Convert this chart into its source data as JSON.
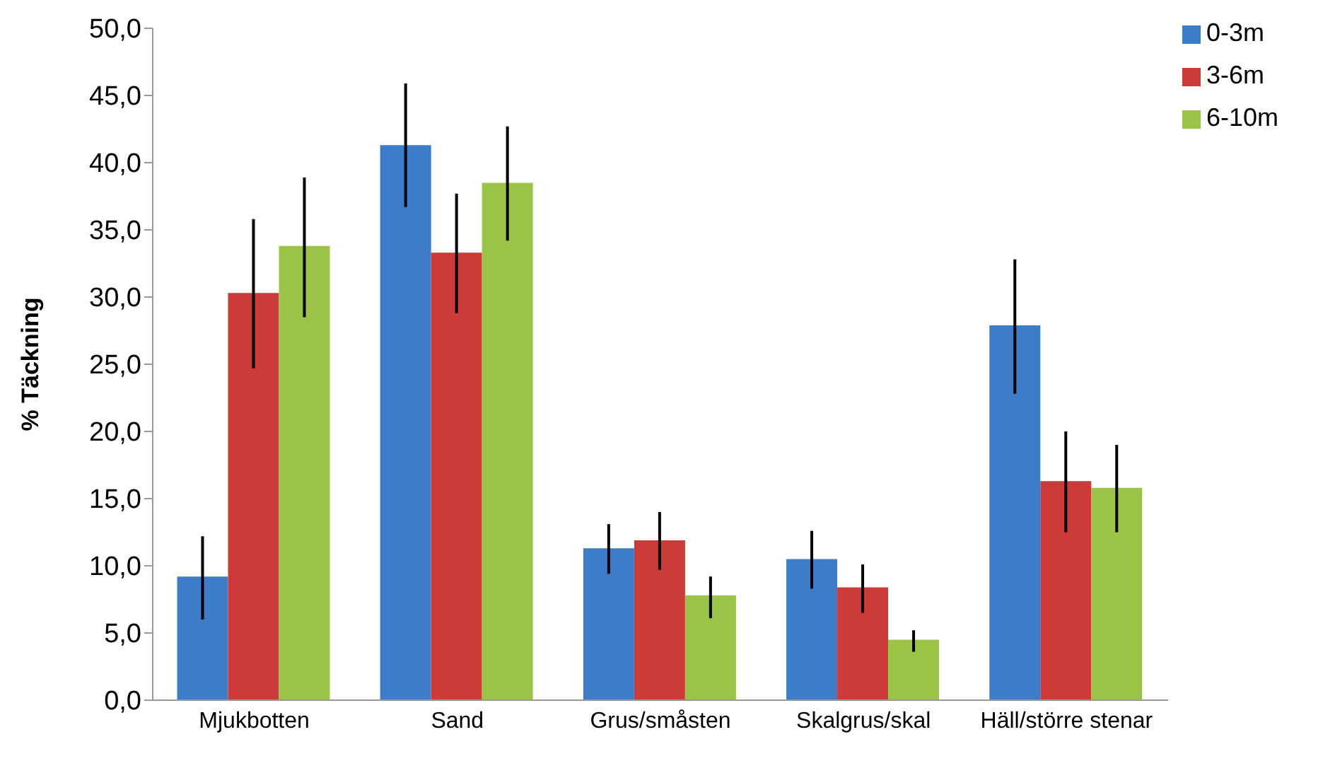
{
  "chart_data": {
    "type": "bar",
    "ylabel": "% Täckning",
    "categories": [
      "Mjukbotten",
      "Sand",
      "Grus/småsten",
      "Skalgrus/skal",
      "Häll/större stenar"
    ],
    "series": [
      {
        "name": "0-3m",
        "color": "#3c7cc8",
        "values": [
          9.2,
          41.3,
          11.3,
          10.5,
          27.9
        ],
        "errors": [
          [
            6.0,
            12.2
          ],
          [
            36.7,
            45.9
          ],
          [
            9.4,
            13.1
          ],
          [
            8.3,
            12.6
          ],
          [
            22.8,
            32.8
          ]
        ]
      },
      {
        "name": "3-6m",
        "color": "#cc3b38",
        "values": [
          30.3,
          33.3,
          11.9,
          8.4,
          16.3
        ],
        "errors": [
          [
            24.7,
            35.8
          ],
          [
            28.8,
            37.7
          ],
          [
            9.7,
            14.0
          ],
          [
            6.5,
            10.1
          ],
          [
            12.5,
            20.0
          ]
        ]
      },
      {
        "name": "6-10m",
        "color": "#9bc447",
        "values": [
          33.8,
          38.5,
          7.8,
          4.5,
          15.8
        ],
        "errors": [
          [
            28.5,
            38.9
          ],
          [
            34.2,
            42.7
          ],
          [
            6.1,
            9.2
          ],
          [
            3.6,
            5.2
          ],
          [
            12.5,
            19.0
          ]
        ]
      }
    ],
    "ylim": [
      0,
      50
    ],
    "yticks": [
      {
        "value": 0,
        "label": "0,0"
      },
      {
        "value": 5,
        "label": "5,0"
      },
      {
        "value": 10,
        "label": "10,0"
      },
      {
        "value": 15,
        "label": "15,0"
      },
      {
        "value": 20,
        "label": "20,0"
      },
      {
        "value": 25,
        "label": "25,0"
      },
      {
        "value": 30,
        "label": "30,0"
      },
      {
        "value": 35,
        "label": "35,0"
      },
      {
        "value": 40,
        "label": "40,0"
      },
      {
        "value": 45,
        "label": "45,0"
      },
      {
        "value": 50,
        "label": "50,0"
      }
    ],
    "legend": "top right",
    "grid": false
  }
}
